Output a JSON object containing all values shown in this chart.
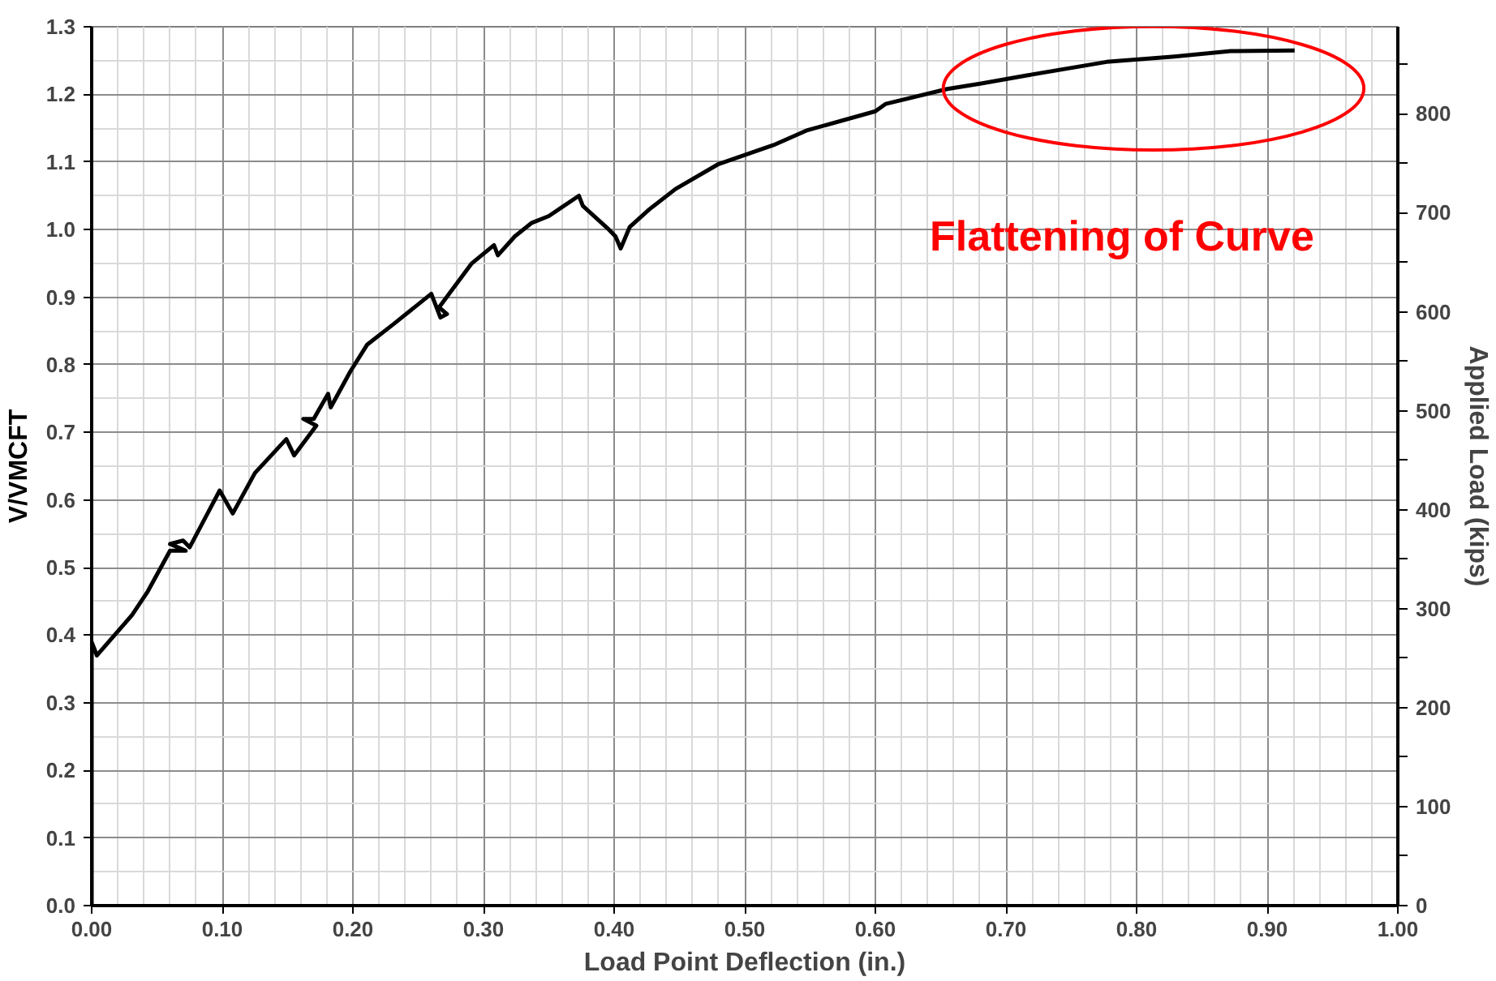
{
  "chart_data": {
    "type": "line",
    "xlabel": "Load Point Deflection (in.)",
    "ylabel": "V/VMCFT",
    "y2label": "Applied Load (kips)",
    "series": [
      {
        "color": "#000000",
        "x": [
          0,
          0,
          0.004,
          0.031,
          0.043,
          0.06,
          0.072,
          0.06,
          0.07,
          0.075,
          0.098,
          0.108,
          0.125,
          0.149,
          0.155,
          0.172,
          0.162,
          0.17,
          0.181,
          0.183,
          0.198,
          0.211,
          0.231,
          0.26,
          0.267,
          0.272,
          0.266,
          0.291,
          0.308,
          0.311,
          0.324,
          0.337,
          0.35,
          0.373,
          0.376,
          0.396,
          0.401,
          0.405,
          0.412,
          0.427,
          0.447,
          0.48,
          0.522,
          0.548,
          0.6,
          0.608,
          0.655,
          0.681,
          0.716,
          0.777,
          0.829,
          0.872,
          0.921
        ],
        "values": [
          0,
          0.39,
          0.37,
          0.43,
          0.465,
          0.525,
          0.525,
          0.535,
          0.54,
          0.53,
          0.614,
          0.58,
          0.64,
          0.69,
          0.666,
          0.71,
          0.72,
          0.72,
          0.757,
          0.737,
          0.79,
          0.83,
          0.86,
          0.905,
          0.87,
          0.875,
          0.885,
          0.95,
          0.977,
          0.962,
          0.99,
          1.01,
          1.02,
          1.05,
          1.035,
          1.0,
          0.99,
          0.972,
          1.004,
          1.03,
          1.06,
          1.097,
          1.125,
          1.147,
          1.175,
          1.186,
          1.208,
          1.216,
          1.228,
          1.248,
          1.256,
          1.264,
          1.265
        ]
      }
    ],
    "xlim": [
      0,
      1
    ],
    "xticks": [
      {
        "value": 0,
        "label": "0.00"
      },
      {
        "value": 0.1,
        "label": "0.10"
      },
      {
        "value": 0.2,
        "label": "0.20"
      },
      {
        "value": 0.3,
        "label": "0.30"
      },
      {
        "value": 0.4,
        "label": "0.40"
      },
      {
        "value": 0.5,
        "label": "0.50"
      },
      {
        "value": 0.6,
        "label": "0.60"
      },
      {
        "value": 0.7,
        "label": "0.70"
      },
      {
        "value": 0.8,
        "label": "0.80"
      },
      {
        "value": 0.9,
        "label": "0.90"
      },
      {
        "value": 1,
        "label": "1.00"
      }
    ],
    "ylim": [
      0,
      1.3
    ],
    "yticks": [
      {
        "value": 0,
        "label": "0.0"
      },
      {
        "value": 0.1,
        "label": "0.1"
      },
      {
        "value": 0.2,
        "label": "0.2"
      },
      {
        "value": 0.3,
        "label": "0.3"
      },
      {
        "value": 0.4,
        "label": "0.4"
      },
      {
        "value": 0.5,
        "label": "0.5"
      },
      {
        "value": 0.6,
        "label": "0.6"
      },
      {
        "value": 0.7,
        "label": "0.7"
      },
      {
        "value": 0.8,
        "label": "0.8"
      },
      {
        "value": 0.9,
        "label": "0.9"
      },
      {
        "value": 1,
        "label": "1.0"
      },
      {
        "value": 1.1,
        "label": "1.1"
      },
      {
        "value": 1.2,
        "label": "1.2"
      },
      {
        "value": 1.3,
        "label": "1.3"
      }
    ],
    "y2lim": [
      0,
      888
    ],
    "y2ticks": [
      0,
      {
        "value": 50,
        "label": null
      },
      100,
      {
        "value": 150,
        "label": null
      },
      200,
      {
        "value": 250,
        "label": null
      },
      300,
      {
        "value": 350,
        "label": null
      },
      400,
      {
        "value": 450,
        "label": null
      },
      500,
      {
        "value": 550,
        "label": null
      },
      600,
      {
        "value": 650,
        "label": null
      },
      700,
      {
        "value": 750,
        "label": null
      },
      800,
      {
        "value": 850,
        "label": null
      }
    ],
    "grid": true,
    "marker": "none",
    "line_style": "solid",
    "annotations": [
      "Flattening of Curve"
    ]
  }
}
